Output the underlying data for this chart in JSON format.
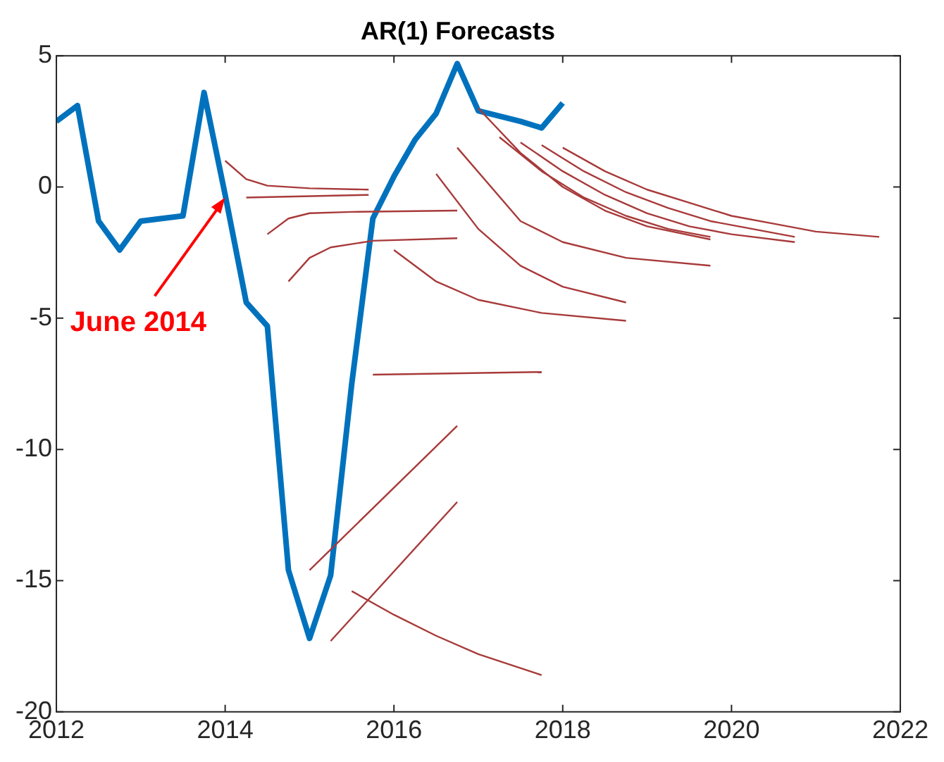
{
  "chart_data": {
    "type": "line",
    "title": "AR(1) Forecasts",
    "xlim": [
      2012,
      2022
    ],
    "xticks": [
      2012,
      2014,
      2016,
      2018,
      2020,
      2022
    ],
    "ylim": [
      -20,
      5
    ],
    "yticks": [
      -20,
      -15,
      -10,
      -5,
      0,
      5
    ],
    "grid": false,
    "legend": false,
    "annotations": [
      {
        "text": "June 2014",
        "x": 2014,
        "y": -0.4
      }
    ],
    "series": [
      {
        "color": "#0072bd",
        "x": [
          2012,
          2012.25,
          2012.5,
          2012.75,
          2013,
          2013.25,
          2013.5,
          2013.75,
          2014,
          2014.25,
          2014.5,
          2014.75,
          2015,
          2015.25,
          2015.5,
          2015.75,
          2016,
          2016.25,
          2016.5,
          2016.75,
          2017,
          2017.25,
          2017.5,
          2017.75,
          2018
        ],
        "values": [
          2.5,
          3.1,
          -1.3,
          -2.4,
          -1.3,
          -1.2,
          -1.1,
          3.6,
          -0.3,
          -4.4,
          -5.3,
          -14.6,
          -17.2,
          -14.8,
          -7.5,
          -1.2,
          0.4,
          1.8,
          2.8,
          4.7,
          2.9,
          2.7,
          2.5,
          2.25,
          3.2
        ]
      },
      {
        "color": "#a83a3a",
        "x": [
          2014,
          2014.25,
          2014.5,
          2015,
          2015.7
        ],
        "values": [
          1.0,
          0.3,
          0.05,
          -0.05,
          -0.1
        ]
      },
      {
        "color": "#a83a3a",
        "x": [
          2014.25,
          2015.7
        ],
        "values": [
          -0.4,
          -0.3
        ]
      },
      {
        "color": "#a83a3a",
        "x": [
          2014.5,
          2014.75,
          2015,
          2015.5,
          2016.75
        ],
        "values": [
          -1.8,
          -1.2,
          -1.0,
          -0.95,
          -0.9
        ]
      },
      {
        "color": "#a83a3a",
        "x": [
          2014.75,
          2015,
          2015.25,
          2015.75,
          2016.75
        ],
        "values": [
          -3.6,
          -2.7,
          -2.3,
          -2.05,
          -1.95
        ]
      },
      {
        "color": "#a83a3a",
        "x": [
          2015,
          2016.75
        ],
        "values": [
          -14.6,
          -9.1
        ]
      },
      {
        "color": "#a83a3a",
        "x": [
          2015.25,
          2016.75
        ],
        "values": [
          -17.3,
          -12.0
        ]
      },
      {
        "color": "#a83a3a",
        "x": [
          2015.5,
          2016,
          2016.5,
          2017,
          2017.75
        ],
        "values": [
          -15.4,
          -16.3,
          -17.1,
          -17.8,
          -18.6
        ]
      },
      {
        "color": "#a83a3a",
        "x": [
          2015.75,
          2017.75
        ],
        "values": [
          -7.15,
          -7.05
        ]
      },
      {
        "color": "#a83a3a",
        "x": [
          2016,
          2016.5,
          2017,
          2017.75,
          2018.75
        ],
        "values": [
          -2.4,
          -3.6,
          -4.3,
          -4.8,
          -5.1
        ]
      },
      {
        "color": "#a83a3a",
        "x": [
          2016.5,
          2017,
          2017.5,
          2018,
          2018.75
        ],
        "values": [
          0.5,
          -1.6,
          -3.0,
          -3.8,
          -4.4
        ]
      },
      {
        "color": "#a83a3a",
        "x": [
          2016.75,
          2017.5,
          2018,
          2018.75,
          2019.75
        ],
        "values": [
          1.5,
          -1.3,
          -2.1,
          -2.7,
          -3.0
        ]
      },
      {
        "color": "#a83a3a",
        "x": [
          2017,
          2017.5,
          2018,
          2018.5,
          2019,
          2019.75
        ],
        "values": [
          3.0,
          1.3,
          0.0,
          -0.9,
          -1.5,
          -2.0
        ]
      },
      {
        "color": "#a83a3a",
        "x": [
          2017.25,
          2017.75,
          2018.25,
          2018.75,
          2019.25,
          2019.75
        ],
        "values": [
          1.9,
          0.6,
          -0.4,
          -1.1,
          -1.6,
          -1.9
        ]
      },
      {
        "color": "#a83a3a",
        "x": [
          2017.5,
          2018,
          2018.5,
          2019,
          2019.5,
          2020,
          2020.75
        ],
        "values": [
          1.7,
          0.6,
          -0.3,
          -1.0,
          -1.5,
          -1.8,
          -2.1
        ]
      },
      {
        "color": "#a83a3a",
        "x": [
          2017.75,
          2018.25,
          2018.75,
          2019.25,
          2019.75,
          2020.25,
          2020.75
        ],
        "values": [
          1.6,
          0.6,
          -0.2,
          -0.8,
          -1.3,
          -1.6,
          -1.9
        ]
      },
      {
        "color": "#a83a3a",
        "x": [
          2018,
          2018.5,
          2019,
          2019.5,
          2020,
          2020.5,
          2021,
          2021.75
        ],
        "values": [
          1.5,
          0.6,
          -0.1,
          -0.6,
          -1.1,
          -1.4,
          -1.7,
          -1.9
        ]
      }
    ]
  }
}
